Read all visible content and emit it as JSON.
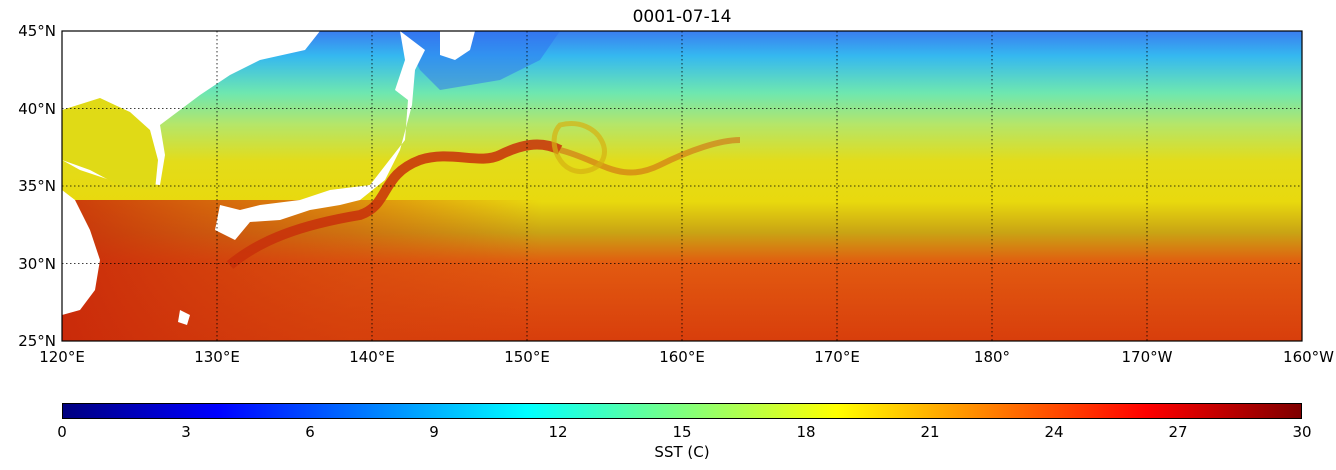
{
  "title": "0001-07-14",
  "map": {
    "extent": {
      "lon_min": 120,
      "lon_max": 200,
      "lat_min": 25,
      "lat_max": 45
    },
    "lat_ticks": [
      {
        "value": 45,
        "label": "45°N"
      },
      {
        "value": 40,
        "label": "40°N"
      },
      {
        "value": 35,
        "label": "35°N"
      },
      {
        "value": 30,
        "label": "30°N"
      },
      {
        "value": 25,
        "label": "25°N"
      }
    ],
    "lon_ticks": [
      {
        "value": 120,
        "label": "120°E"
      },
      {
        "value": 130,
        "label": "130°E"
      },
      {
        "value": 140,
        "label": "140°E"
      },
      {
        "value": 150,
        "label": "150°E"
      },
      {
        "value": 160,
        "label": "160°E"
      },
      {
        "value": 170,
        "label": "170°E"
      },
      {
        "value": 180,
        "label": "180°"
      },
      {
        "value": 190,
        "label": "170°W"
      },
      {
        "value": 200,
        "label": "160°W"
      }
    ],
    "land_color": "#ffffff",
    "grid": "dotted"
  },
  "colorbar": {
    "label": "SST (C)",
    "min": 0,
    "max": 30,
    "ticks": [
      "0",
      "3",
      "6",
      "9",
      "12",
      "15",
      "18",
      "21",
      "24",
      "27",
      "30"
    ],
    "colormap": "jet",
    "colors": [
      "#00007f",
      "#0000ff",
      "#007fff",
      "#00ffff",
      "#7fff7f",
      "#ffff00",
      "#ff7f00",
      "#ff0000",
      "#7f0000"
    ]
  }
}
